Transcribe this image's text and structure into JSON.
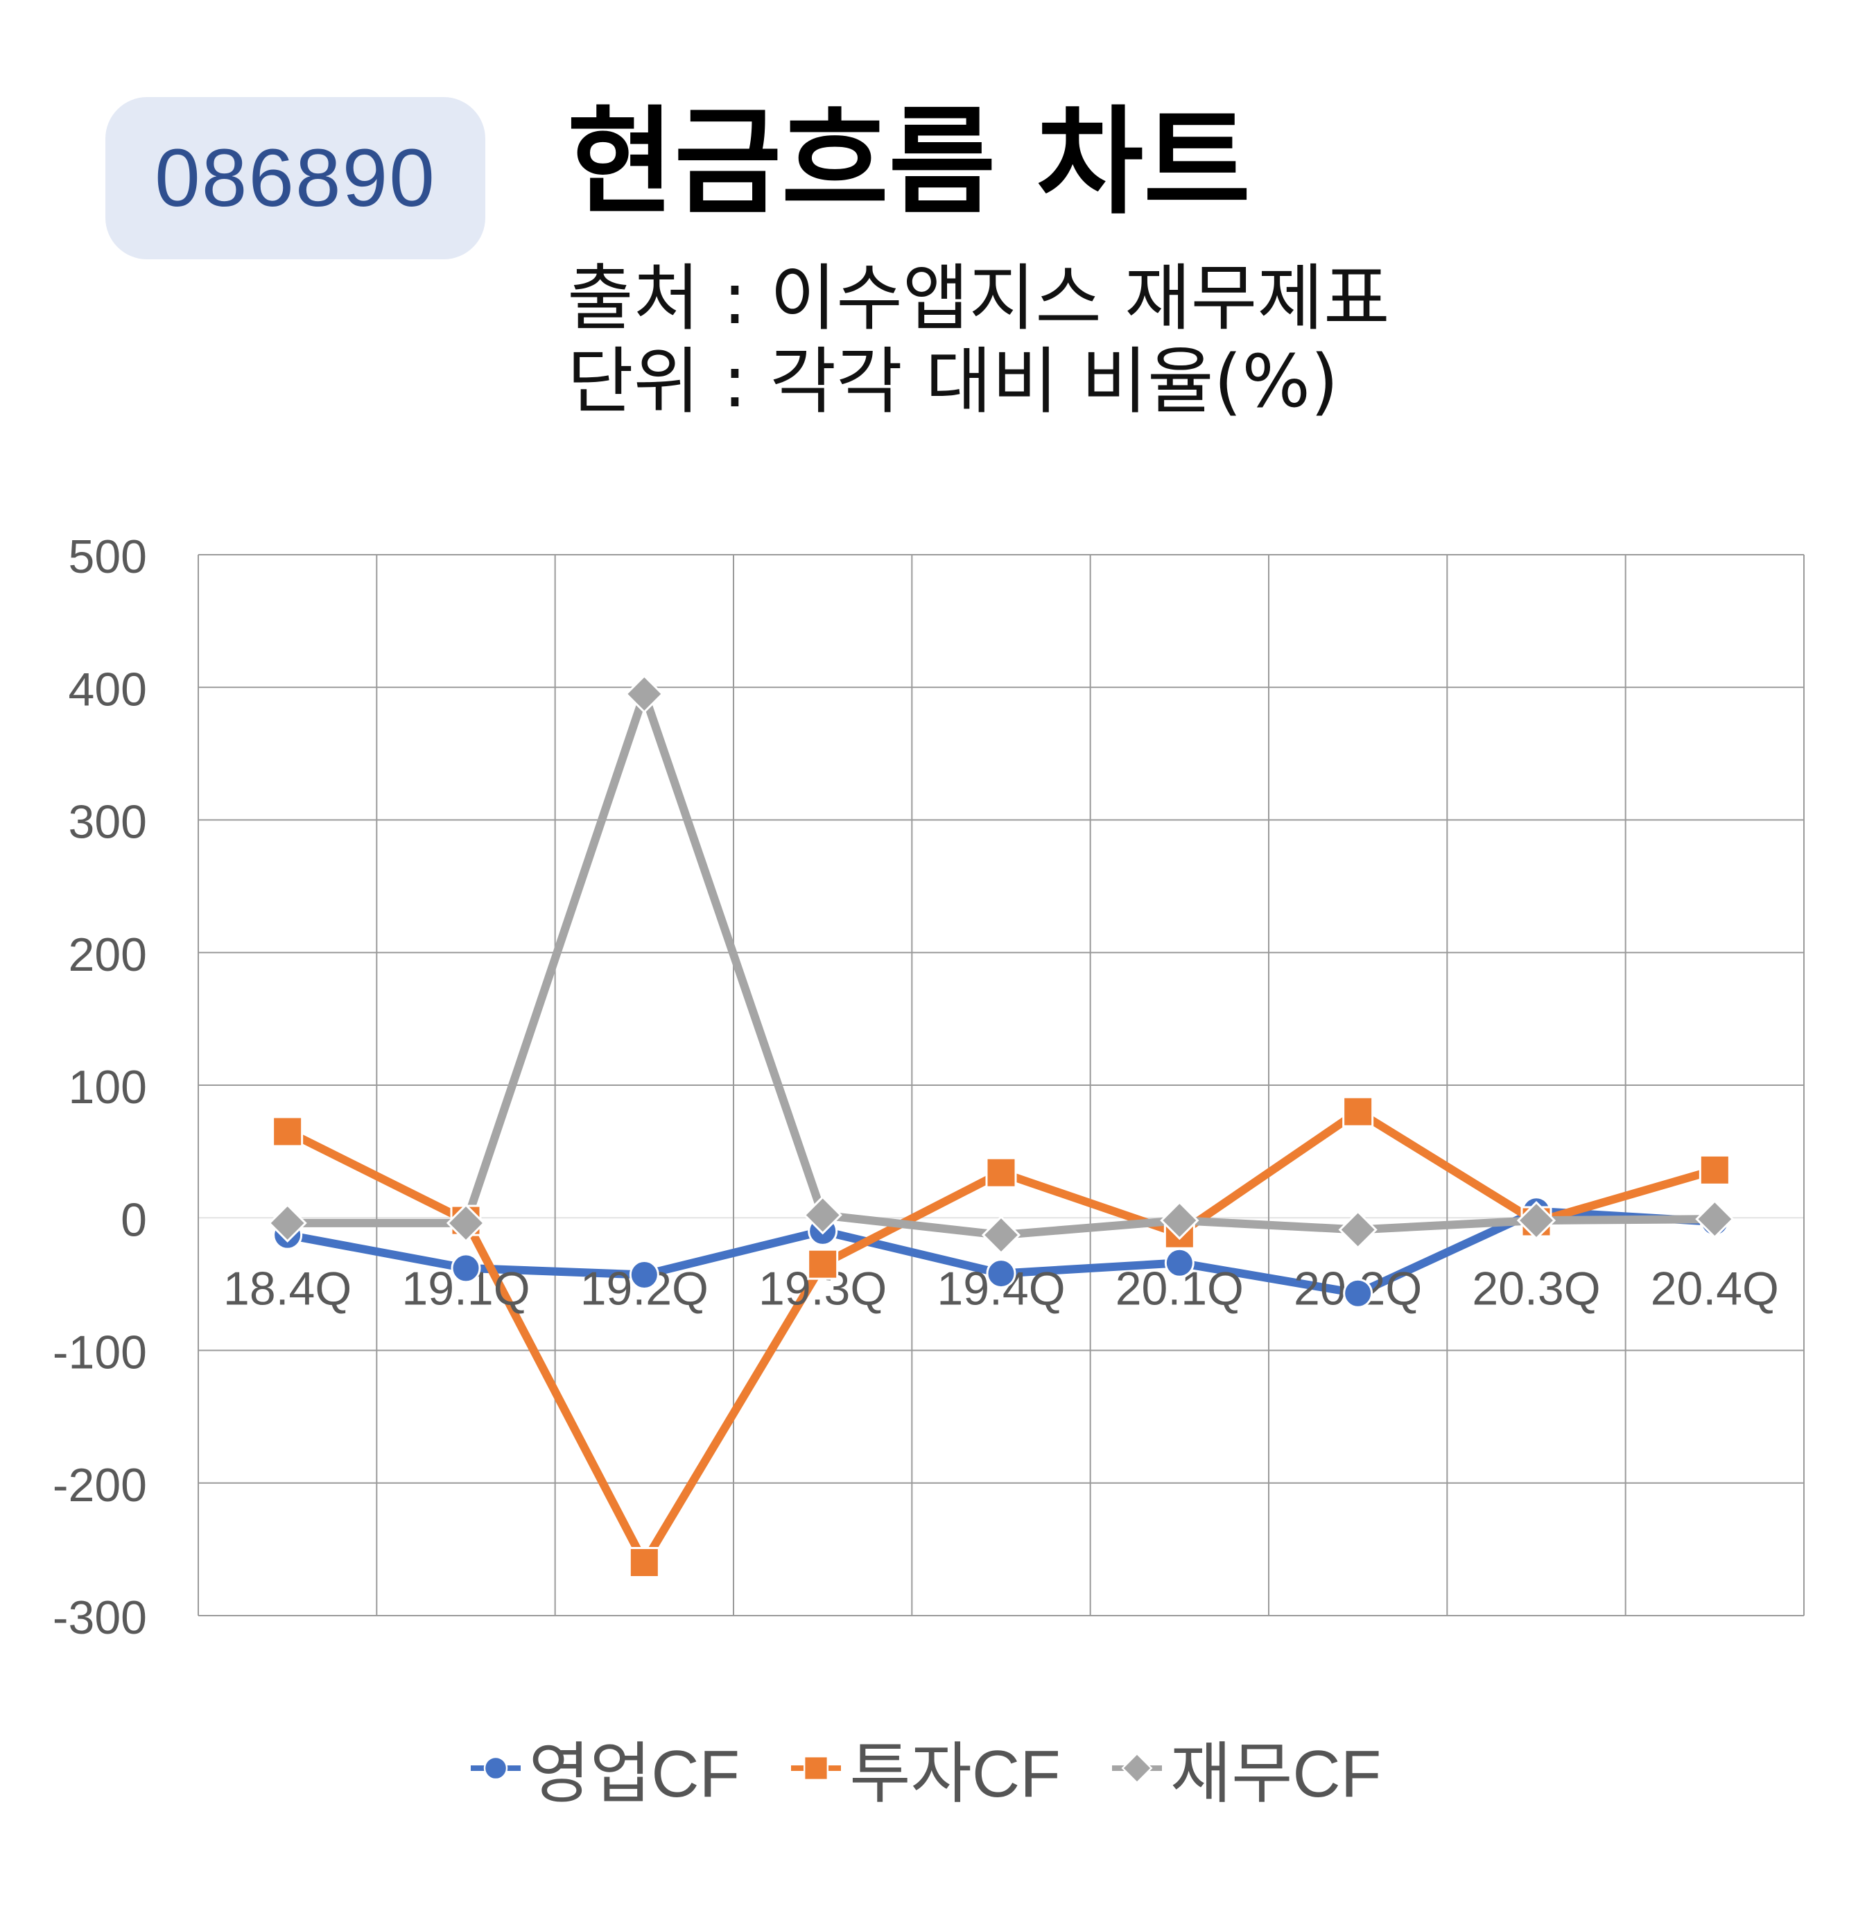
{
  "badge": {
    "code": "086890"
  },
  "header": {
    "title": "현금흐름 차트",
    "source": "출처 : 이수앱지스 재무제표",
    "unit": "단위 : 각각 대비 비율(%)"
  },
  "chart_data": {
    "type": "line",
    "categories": [
      "18.4Q",
      "19.1Q",
      "19.2Q",
      "19.3Q",
      "19.4Q",
      "20.1Q",
      "20.2Q",
      "20.3Q",
      "20.4Q"
    ],
    "ylim": [
      -300,
      500
    ],
    "yticks": [
      "500",
      "400",
      "300",
      "200",
      "100",
      "0",
      "-100",
      "-200",
      "-300"
    ],
    "grid": true,
    "legend_position": "bottom",
    "series": [
      {
        "name": "영업CF",
        "color": "#4472c4",
        "marker": "circle",
        "values": [
          -13,
          -38,
          -43,
          -10,
          -42,
          -34,
          -57,
          5,
          -3
        ]
      },
      {
        "name": "투자CF",
        "color": "#ed7d31",
        "marker": "square",
        "values": [
          65,
          -2,
          -260,
          -35,
          34,
          -12,
          80,
          -3,
          36
        ]
      },
      {
        "name": "재무CF",
        "color": "#a5a5a5",
        "marker": "diamond",
        "values": [
          -4,
          -4,
          395,
          2,
          -13,
          -2,
          -9,
          -2,
          -1
        ]
      }
    ]
  }
}
